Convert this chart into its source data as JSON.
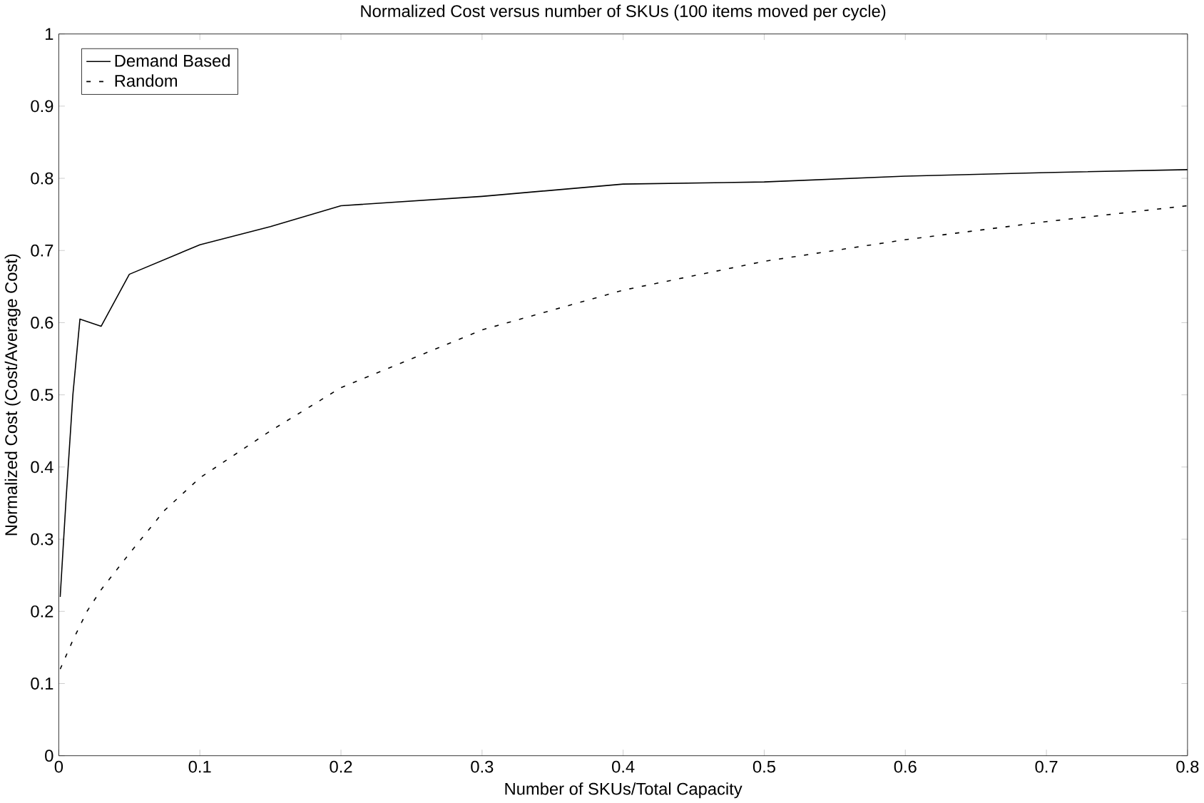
{
  "chart_data": {
    "type": "line",
    "title": "Normalized Cost versus number of SKUs (100 items moved per cycle)",
    "xlabel": "Number of SKUs/Total Capacity",
    "ylabel": "Normalized Cost (Cost/Average Cost)",
    "xlim": [
      0,
      0.8
    ],
    "ylim": [
      0,
      1
    ],
    "xticks": [
      0,
      0.1,
      0.2,
      0.3,
      0.4,
      0.5,
      0.6,
      0.7,
      0.8
    ],
    "yticks": [
      0,
      0.1,
      0.2,
      0.3,
      0.4,
      0.5,
      0.6,
      0.7,
      0.8,
      0.9,
      1
    ],
    "grid": false,
    "legend": "top left",
    "marker": "none",
    "series": [
      {
        "name": "Demand Based",
        "color": "#000000",
        "line_style": "solid",
        "x": [
          0.001,
          0.005,
          0.01,
          0.015,
          0.03,
          0.05,
          0.1,
          0.15,
          0.2,
          0.3,
          0.4,
          0.5,
          0.6,
          0.7,
          0.8
        ],
        "values": [
          0.22,
          0.35,
          0.5,
          0.605,
          0.595,
          0.667,
          0.708,
          0.733,
          0.762,
          0.775,
          0.792,
          0.795,
          0.803,
          0.808,
          0.812
        ]
      },
      {
        "name": "Random",
        "color": "#000000",
        "line_style": "dashed",
        "x": [
          0.001,
          0.01,
          0.02,
          0.03,
          0.05,
          0.075,
          0.1,
          0.15,
          0.2,
          0.3,
          0.4,
          0.5,
          0.6,
          0.7,
          0.8
        ],
        "values": [
          0.12,
          0.16,
          0.2,
          0.23,
          0.28,
          0.34,
          0.385,
          0.45,
          0.51,
          0.59,
          0.645,
          0.685,
          0.715,
          0.74,
          0.762
        ]
      }
    ]
  }
}
